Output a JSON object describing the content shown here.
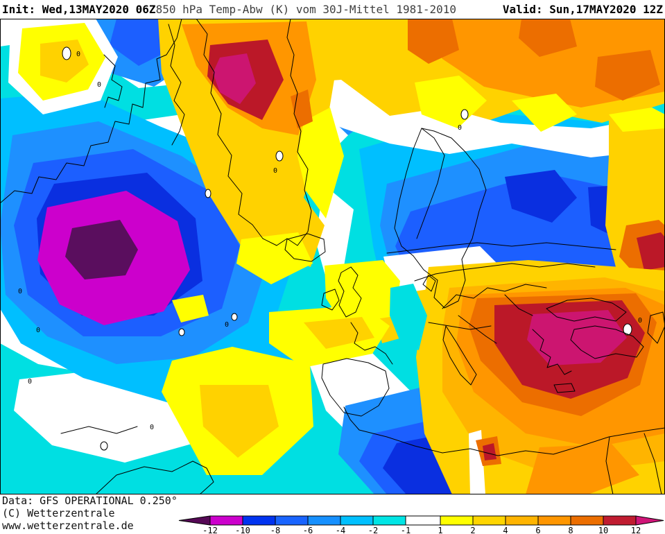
{
  "header": {
    "init_label": "Init: Wed,13MAY2020 06Z",
    "title": "850 hPa Temp-Abw (K) vom 30J-Mittel 1981-2010",
    "valid_label": "Valid: Sun,17MAY2020 12Z"
  },
  "map": {
    "contour_label": "0"
  },
  "footer": {
    "data_line": "Data: GFS OPERATIONAL 0.250°",
    "copyright_line": "(C) Wetterzentrale",
    "url_line": "www.wetterzentrale.de"
  },
  "legend": {
    "tick_labels": [
      "-12",
      "-10",
      "-8",
      "-6",
      "-4",
      "-2",
      "-1",
      "1",
      "2",
      "4",
      "6",
      "8",
      "10",
      "12"
    ],
    "cell_colors": [
      "#cc00cc",
      "#0033f0",
      "#1964ff",
      "#1690ff",
      "#00c0ff",
      "#00e5e5",
      "#ffffff",
      "#ffff00",
      "#ffd500",
      "#ffb400",
      "#ff9600",
      "#ec6e00",
      "#c01c30"
    ],
    "left_arrow_color": "#550855",
    "right_arrow_color": "#d01578"
  },
  "palette": {
    "cyan": "#00dfe2",
    "light_blue": "#00bfff",
    "mid_blue": "#1e90ff",
    "deep_blue": "#1c5fff",
    "royal_blue": "#0a2fe0",
    "cold_magenta": "#cc00cc",
    "cold_purple": "#5a0e5e",
    "yellow": "#ffff00",
    "gold": "#ffd200",
    "amber": "#ffb400",
    "orange": "#ff9600",
    "dark_orange": "#ec6e00",
    "dark_red": "#bb1828",
    "warm_pink": "#cc1570"
  }
}
